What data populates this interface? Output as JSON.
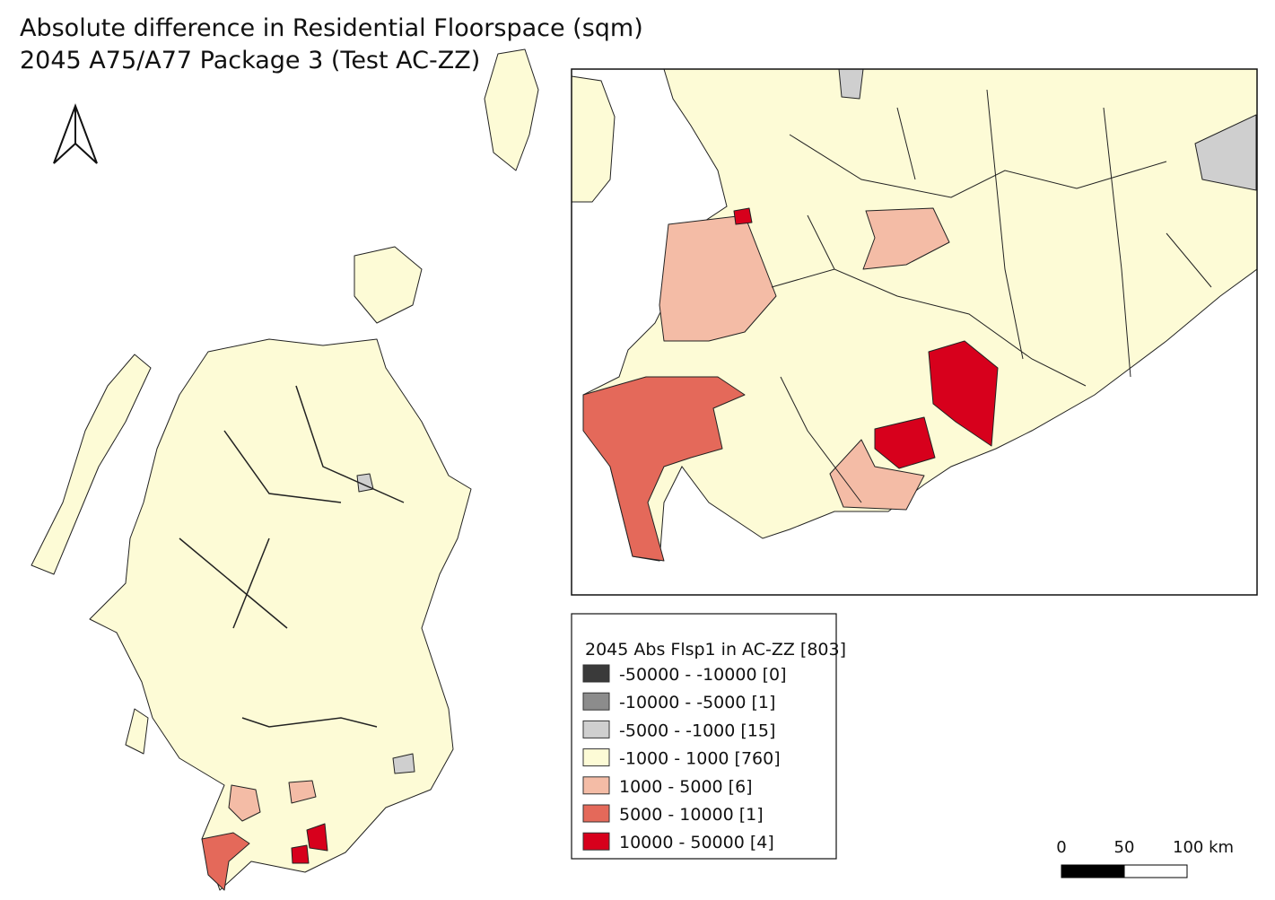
{
  "title": {
    "line1": "Absolute difference in Residential Floorspace (sqm)",
    "line2": "2045 A75/A77 Package 3 (Test AC-ZZ)"
  },
  "legend": {
    "title": "2045 Abs Flsp1 in AC-ZZ [803]",
    "items": [
      {
        "label": "-50000 - -10000 [0]",
        "color": "#3a3a3a"
      },
      {
        "label": "-10000 - -5000 [1]",
        "color": "#8c8c8c"
      },
      {
        "label": "-5000 - -1000 [15]",
        "color": "#cfcfcf"
      },
      {
        "label": "-1000 - 1000 [760]",
        "color": "#fdfbd6"
      },
      {
        "label": "1000 - 5000 [6]",
        "color": "#f4bca6"
      },
      {
        "label": "5000 - 10000 [1]",
        "color": "#e4695a"
      },
      {
        "label": "10000 - 50000 [4]",
        "color": "#d7001c"
      }
    ]
  },
  "scale_bar": {
    "labels": [
      "0",
      "50",
      "100 km"
    ]
  }
}
